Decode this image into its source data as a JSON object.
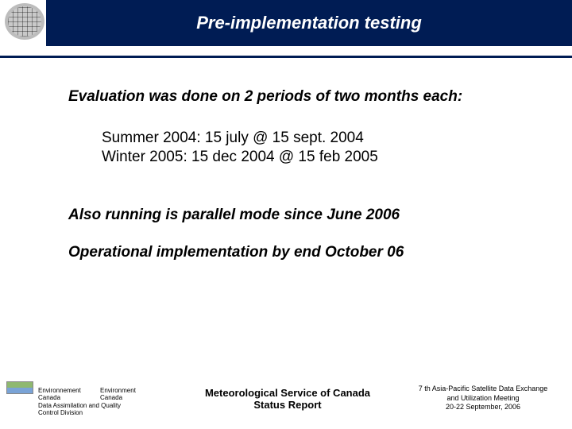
{
  "header": {
    "title": "Pre-implementation testing"
  },
  "content": {
    "intro": "Evaluation was done on 2 periods of two months each:",
    "period1": "Summer 2004: 15 july @ 15 sept. 2004",
    "period2": "Winter 2005: 15 dec 2004 @ 15 feb 2005",
    "note1": "Also running is parallel mode since June 2006",
    "note2": "Operational implementation by end October 06"
  },
  "footer": {
    "left_fr1": "Environnement",
    "left_fr2": "Canada",
    "left_en1": "Environment",
    "left_en2": "Canada",
    "left_div1": "Data Assimilation and Quality",
    "left_div2": "Control Division",
    "center1": "Meteorological Service of Canada",
    "center2": "Status Report",
    "right1": "7 th Asia-Pacific Satellite Data Exchange",
    "right2": "and Utilization Meeting",
    "right3": "20-22 September, 2006"
  }
}
